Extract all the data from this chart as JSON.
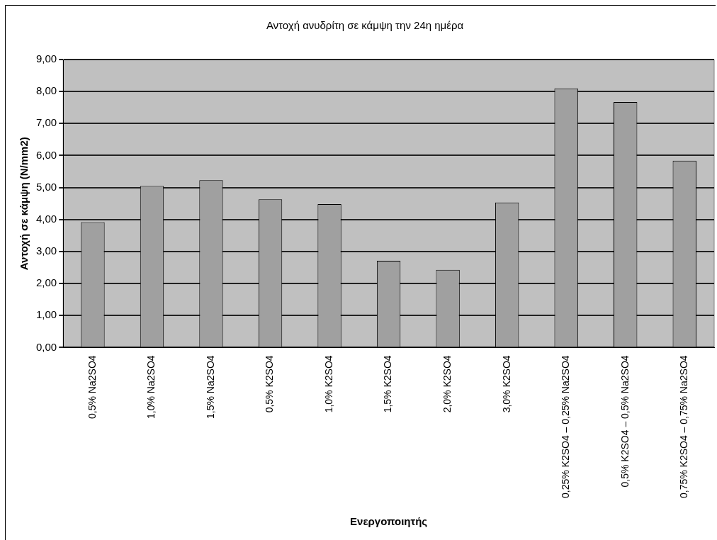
{
  "chart_data": {
    "type": "bar",
    "title": "Αντοχή ανυδρίτη σε κάμψη την 24η ημέρα",
    "xlabel": "Ενεργοποιητής",
    "ylabel": "Αντοχή σε κάμψη (N/mm2)",
    "categories": [
      "0,5% Na2SO4",
      "1,0% Na2SO4",
      "1,5% Na2SO4",
      "0,5% K2SO4",
      "1,0% K2SO4",
      "1,5% K2SO4",
      "2,0% K2SO4",
      "3,0% K2SO4",
      "0,25% K2SO4 – 0,25% Na2SO4",
      "0,5% K2SO4 – 0,5% Na2SO4",
      "0,75% K2SO4 – 0,75% Na2SO4"
    ],
    "values": [
      3.92,
      5.05,
      5.23,
      4.63,
      4.48,
      2.71,
      2.43,
      4.53,
      8.1,
      7.67,
      5.84
    ],
    "color": "#a0a0a0",
    "ylim": [
      0,
      9
    ],
    "yticks": [
      {
        "value": 0,
        "label": "0,00"
      },
      {
        "value": 1,
        "label": "1,00"
      },
      {
        "value": 2,
        "label": "2,00"
      },
      {
        "value": 3,
        "label": "3,00"
      },
      {
        "value": 4,
        "label": "4,00"
      },
      {
        "value": 5,
        "label": "5,00"
      },
      {
        "value": 6,
        "label": "6,00"
      },
      {
        "value": 7,
        "label": "7,00"
      },
      {
        "value": 8,
        "label": "8,00"
      },
      {
        "value": 9,
        "label": "9,00"
      }
    ],
    "grid": "y",
    "legend": false
  }
}
